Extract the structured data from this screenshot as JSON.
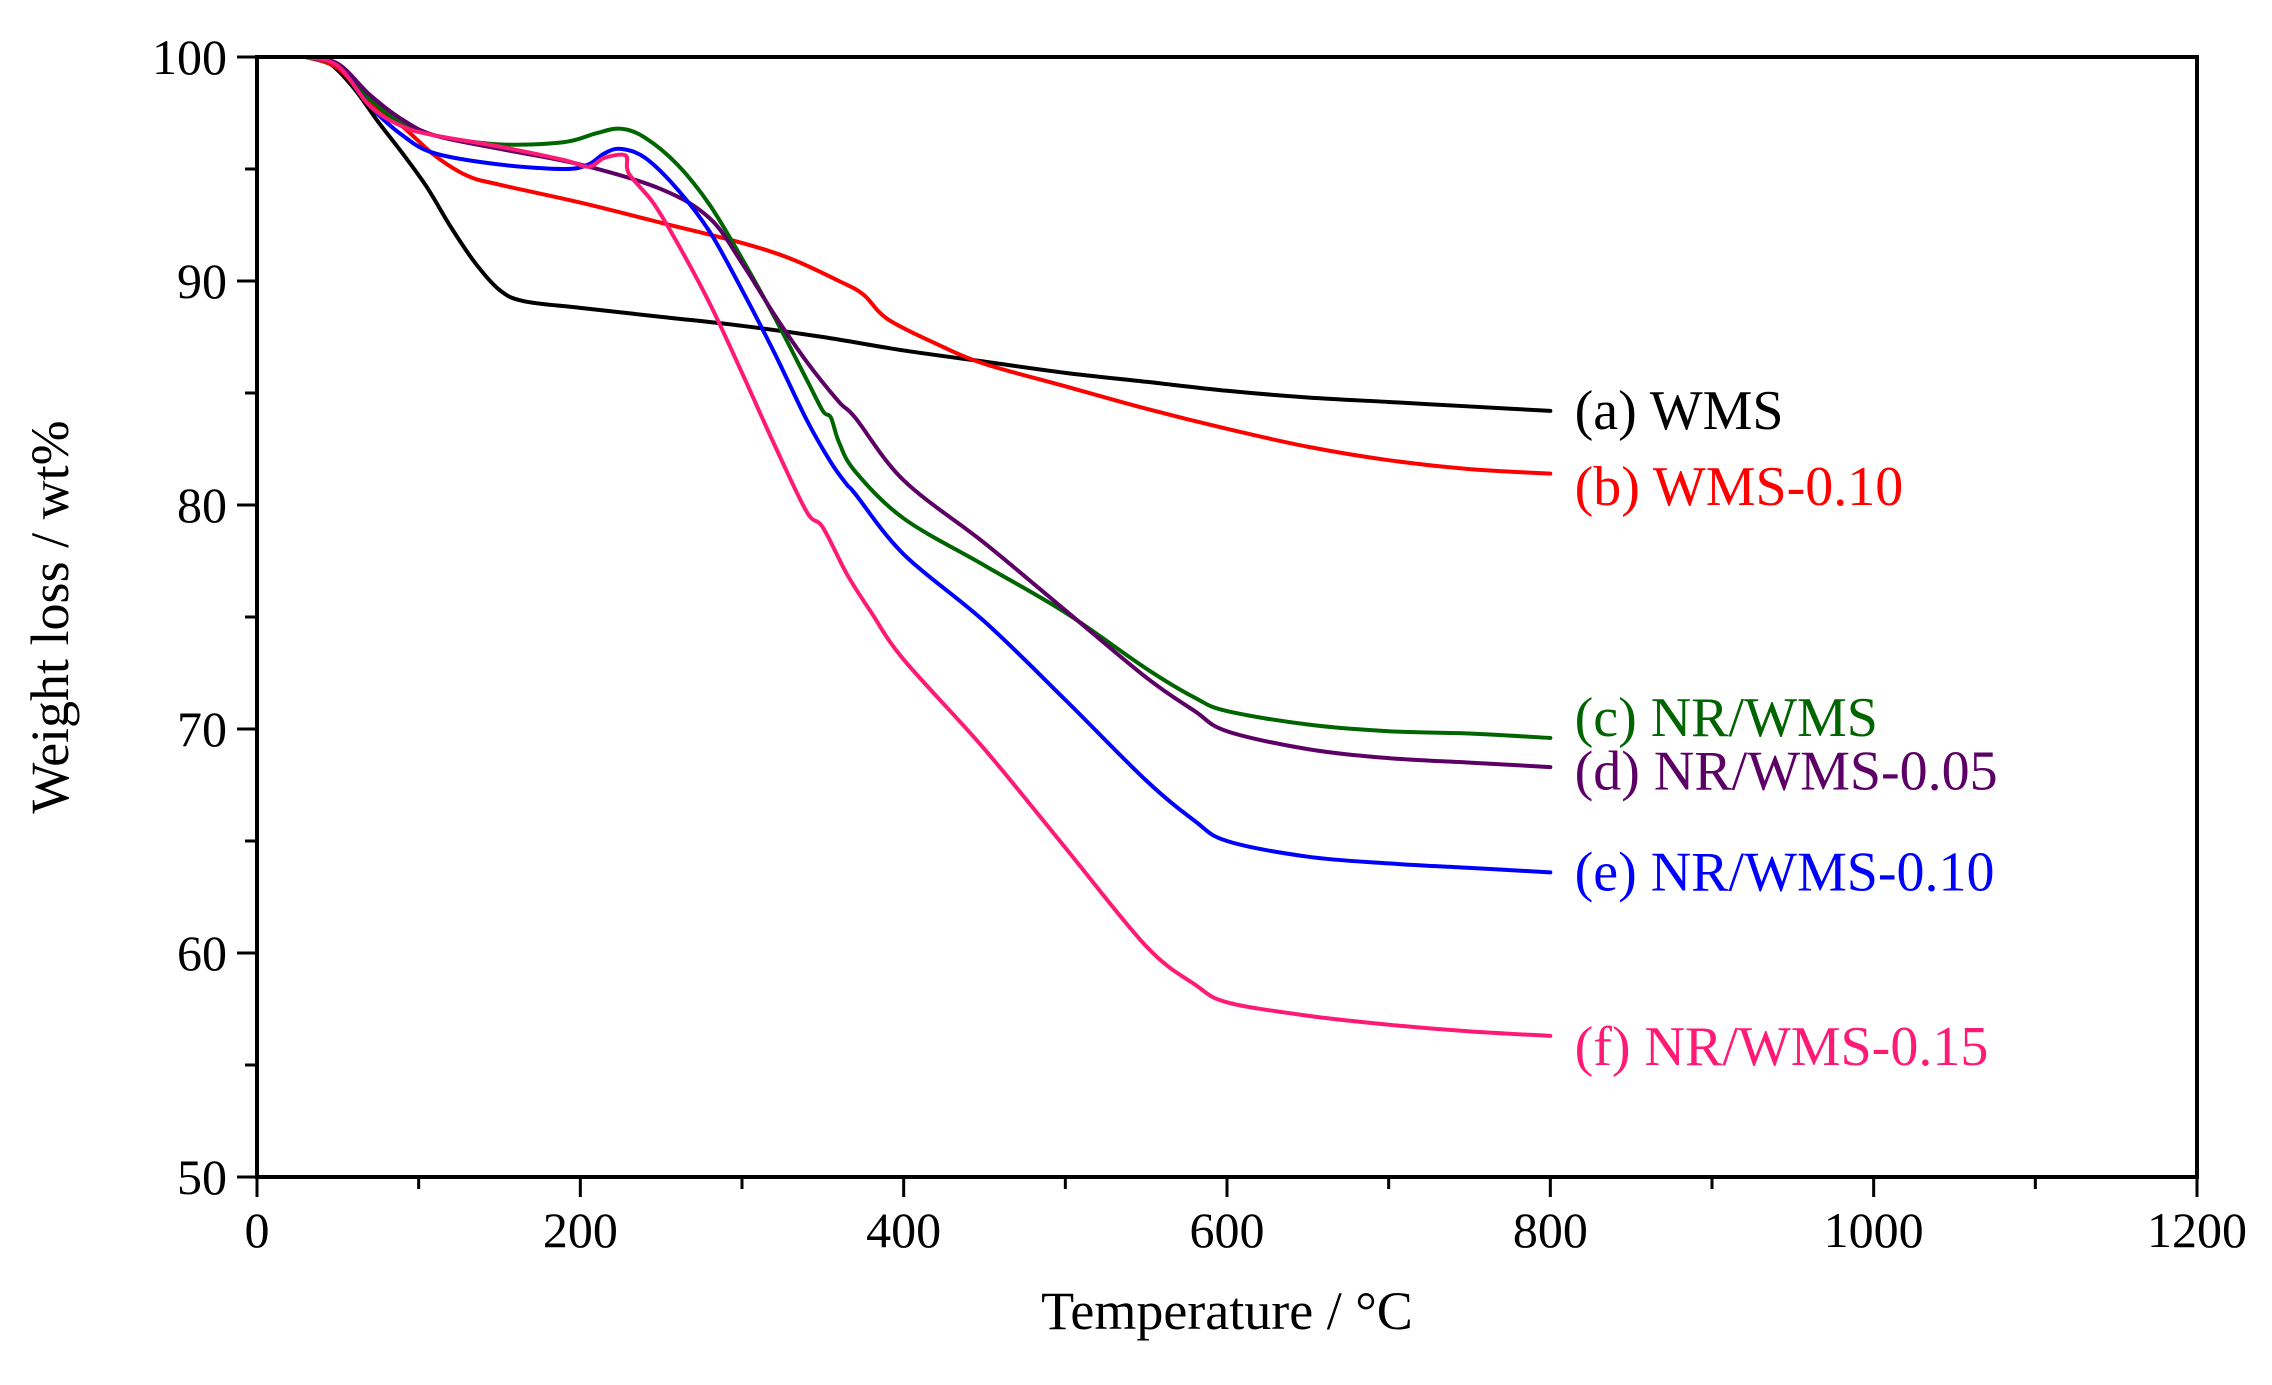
{
  "chart_data": {
    "type": "line",
    "title": "",
    "xlabel": "Temperature / °C",
    "ylabel": "Weight loss / wt%",
    "xlim": [
      0,
      1200
    ],
    "ylim": [
      50,
      100
    ],
    "x_ticks": [
      0,
      200,
      400,
      600,
      800,
      1000,
      1200
    ],
    "x_minor_ticks": [
      100,
      300,
      500,
      700,
      900,
      1100
    ],
    "y_ticks": [
      50,
      60,
      70,
      80,
      90,
      100
    ],
    "y_minor_ticks": [
      55,
      65,
      75,
      85,
      95
    ],
    "grid": false,
    "legend": "inline labels at right end of curves",
    "series": [
      {
        "name": "(a) WMS",
        "color": "#000000",
        "label_pos": [
          815,
          84.2
        ],
        "points": [
          [
            30,
            100
          ],
          [
            45,
            99.7
          ],
          [
            60,
            98.6
          ],
          [
            75,
            97.1
          ],
          [
            90,
            95.7
          ],
          [
            105,
            94.2
          ],
          [
            120,
            92.4
          ],
          [
            135,
            90.8
          ],
          [
            150,
            89.6
          ],
          [
            165,
            89.1
          ],
          [
            200,
            88.8
          ],
          [
            250,
            88.4
          ],
          [
            300,
            88.0
          ],
          [
            350,
            87.5
          ],
          [
            400,
            86.9
          ],
          [
            450,
            86.4
          ],
          [
            500,
            85.9
          ],
          [
            550,
            85.5
          ],
          [
            600,
            85.1
          ],
          [
            650,
            84.8
          ],
          [
            700,
            84.6
          ],
          [
            750,
            84.4
          ],
          [
            800,
            84.2
          ]
        ]
      },
      {
        "name": "(b) WMS-0.10",
        "color": "#ff0000",
        "label_pos": [
          815,
          80.8
        ],
        "points": [
          [
            30,
            100
          ],
          [
            50,
            99.5
          ],
          [
            70,
            98.0
          ],
          [
            90,
            96.9
          ],
          [
            110,
            95.6
          ],
          [
            130,
            94.7
          ],
          [
            150,
            94.3
          ],
          [
            200,
            93.5
          ],
          [
            250,
            92.6
          ],
          [
            300,
            91.7
          ],
          [
            330,
            91.0
          ],
          [
            360,
            90.0
          ],
          [
            375,
            89.4
          ],
          [
            390,
            88.3
          ],
          [
            420,
            87.2
          ],
          [
            450,
            86.3
          ],
          [
            500,
            85.3
          ],
          [
            550,
            84.3
          ],
          [
            600,
            83.4
          ],
          [
            650,
            82.6
          ],
          [
            700,
            82.0
          ],
          [
            750,
            81.6
          ],
          [
            800,
            81.4
          ]
        ]
      },
      {
        "name": "(c) NR/WMS",
        "color": "#006400",
        "label_pos": [
          815,
          70.5
        ],
        "points": [
          [
            30,
            100
          ],
          [
            50,
            99.6
          ],
          [
            70,
            98.1
          ],
          [
            90,
            97.0
          ],
          [
            110,
            96.5
          ],
          [
            150,
            96.1
          ],
          [
            190,
            96.2
          ],
          [
            210,
            96.6
          ],
          [
            225,
            96.8
          ],
          [
            240,
            96.4
          ],
          [
            260,
            95.2
          ],
          [
            280,
            93.4
          ],
          [
            300,
            91.0
          ],
          [
            320,
            88.4
          ],
          [
            340,
            85.6
          ],
          [
            350,
            84.2
          ],
          [
            355,
            83.9
          ],
          [
            360,
            82.8
          ],
          [
            370,
            81.5
          ],
          [
            400,
            79.4
          ],
          [
            450,
            77.3
          ],
          [
            500,
            75.2
          ],
          [
            550,
            72.7
          ],
          [
            580,
            71.4
          ],
          [
            600,
            70.8
          ],
          [
            650,
            70.2
          ],
          [
            700,
            69.9
          ],
          [
            750,
            69.8
          ],
          [
            800,
            69.6
          ]
        ]
      },
      {
        "name": "(d) NR/WMS-0.05",
        "color": "#5c0066",
        "label_pos": [
          815,
          68.1
        ],
        "points": [
          [
            30,
            100
          ],
          [
            50,
            99.7
          ],
          [
            70,
            98.3
          ],
          [
            90,
            97.2
          ],
          [
            110,
            96.5
          ],
          [
            150,
            95.9
          ],
          [
            200,
            95.2
          ],
          [
            250,
            94.1
          ],
          [
            280,
            92.8
          ],
          [
            300,
            90.8
          ],
          [
            320,
            88.5
          ],
          [
            340,
            86.4
          ],
          [
            360,
            84.6
          ],
          [
            370,
            83.9
          ],
          [
            400,
            81.1
          ],
          [
            450,
            78.3
          ],
          [
            500,
            75.3
          ],
          [
            550,
            72.3
          ],
          [
            580,
            70.8
          ],
          [
            600,
            69.9
          ],
          [
            650,
            69.1
          ],
          [
            700,
            68.7
          ],
          [
            750,
            68.5
          ],
          [
            800,
            68.3
          ]
        ]
      },
      {
        "name": "(e) NR/WMS-0.10",
        "color": "#0000ff",
        "label_pos": [
          815,
          63.6
        ],
        "points": [
          [
            30,
            100
          ],
          [
            50,
            99.6
          ],
          [
            70,
            97.8
          ],
          [
            90,
            96.5
          ],
          [
            110,
            95.7
          ],
          [
            150,
            95.2
          ],
          [
            190,
            95.0
          ],
          [
            205,
            95.2
          ],
          [
            215,
            95.7
          ],
          [
            225,
            95.9
          ],
          [
            240,
            95.5
          ],
          [
            260,
            94.1
          ],
          [
            280,
            92.2
          ],
          [
            300,
            89.6
          ],
          [
            320,
            86.8
          ],
          [
            340,
            83.8
          ],
          [
            355,
            81.9
          ],
          [
            365,
            80.9
          ],
          [
            370,
            80.5
          ],
          [
            400,
            77.8
          ],
          [
            450,
            74.8
          ],
          [
            500,
            71.3
          ],
          [
            550,
            67.7
          ],
          [
            580,
            65.9
          ],
          [
            600,
            65.0
          ],
          [
            650,
            64.3
          ],
          [
            700,
            64.0
          ],
          [
            750,
            63.8
          ],
          [
            800,
            63.6
          ]
        ]
      },
      {
        "name": "(f) NR/WMS-0.15",
        "color": "#ff1a75",
        "label_pos": [
          815,
          55.8
        ],
        "points": [
          [
            30,
            100
          ],
          [
            50,
            99.6
          ],
          [
            70,
            97.8
          ],
          [
            90,
            96.9
          ],
          [
            110,
            96.5
          ],
          [
            150,
            96.0
          ],
          [
            190,
            95.4
          ],
          [
            205,
            95.1
          ],
          [
            215,
            95.5
          ],
          [
            228,
            95.6
          ],
          [
            230,
            94.8
          ],
          [
            245,
            93.5
          ],
          [
            260,
            91.7
          ],
          [
            280,
            89.0
          ],
          [
            300,
            85.9
          ],
          [
            320,
            82.7
          ],
          [
            340,
            79.7
          ],
          [
            350,
            79.0
          ],
          [
            365,
            76.9
          ],
          [
            380,
            75.2
          ],
          [
            400,
            73.1
          ],
          [
            450,
            69.1
          ],
          [
            500,
            64.7
          ],
          [
            550,
            60.3
          ],
          [
            580,
            58.6
          ],
          [
            600,
            57.8
          ],
          [
            650,
            57.2
          ],
          [
            700,
            56.8
          ],
          [
            750,
            56.5
          ],
          [
            800,
            56.3
          ]
        ]
      }
    ]
  }
}
